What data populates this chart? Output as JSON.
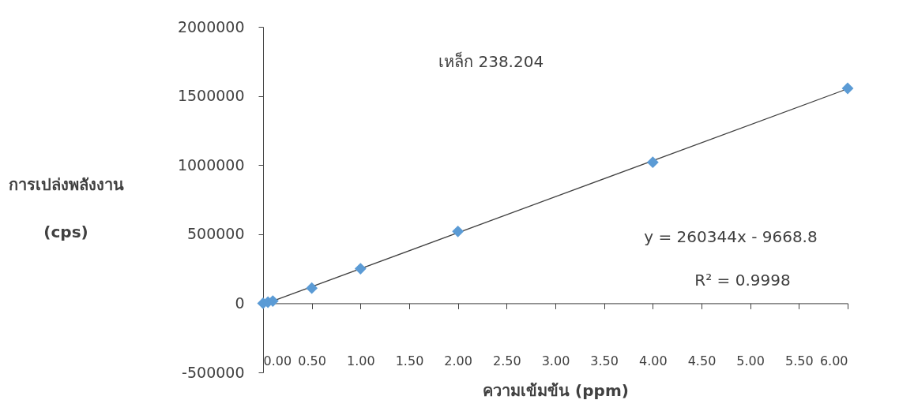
{
  "chart_data": {
    "type": "scatter",
    "title": "เหล็ก 238.204",
    "xlabel": "ความเข้มข้น (ppm)",
    "ylabel": "การเปล่งพลังงาน\n(cps)",
    "series": [
      {
        "name": null,
        "color": "#5b9bd5",
        "marker": "diamond",
        "x": [
          0,
          0.05,
          0.1,
          0.5,
          1,
          2,
          4,
          6
        ],
        "values": [
          0,
          8000,
          16000,
          110000,
          250000,
          520000,
          1020000,
          1555000
        ]
      },
      {
        "name": null,
        "type": "line",
        "color": "#404040",
        "marker": "none",
        "line_style": "solid",
        "x": [
          0,
          6
        ],
        "values": [
          -10000,
          1552000
        ]
      }
    ],
    "annotations": [
      "y = 260344x - 9668.8",
      "R² = 0.9998"
    ],
    "xlim": [
      0,
      6
    ],
    "xticks": [
      {
        "value": 0,
        "label": "0.00"
      },
      {
        "value": 0.5,
        "label": "0.50"
      },
      {
        "value": 1,
        "label": "1.00"
      },
      {
        "value": 1.5,
        "label": "1.50"
      },
      {
        "value": 2,
        "label": "2.00"
      },
      {
        "value": 2.5,
        "label": "2.50"
      },
      {
        "value": 3,
        "label": "3.00"
      },
      {
        "value": 3.5,
        "label": "3.50"
      },
      {
        "value": 4,
        "label": "4.00"
      },
      {
        "value": 4.5,
        "label": "4.50"
      },
      {
        "value": 5,
        "label": "5.00"
      },
      {
        "value": 5.5,
        "label": "5.50"
      },
      {
        "value": 6,
        "label": "6.00"
      }
    ],
    "ylim": [
      -500000,
      2000000
    ],
    "yticks": [
      -500000,
      0,
      500000,
      1000000,
      1500000,
      2000000
    ]
  }
}
